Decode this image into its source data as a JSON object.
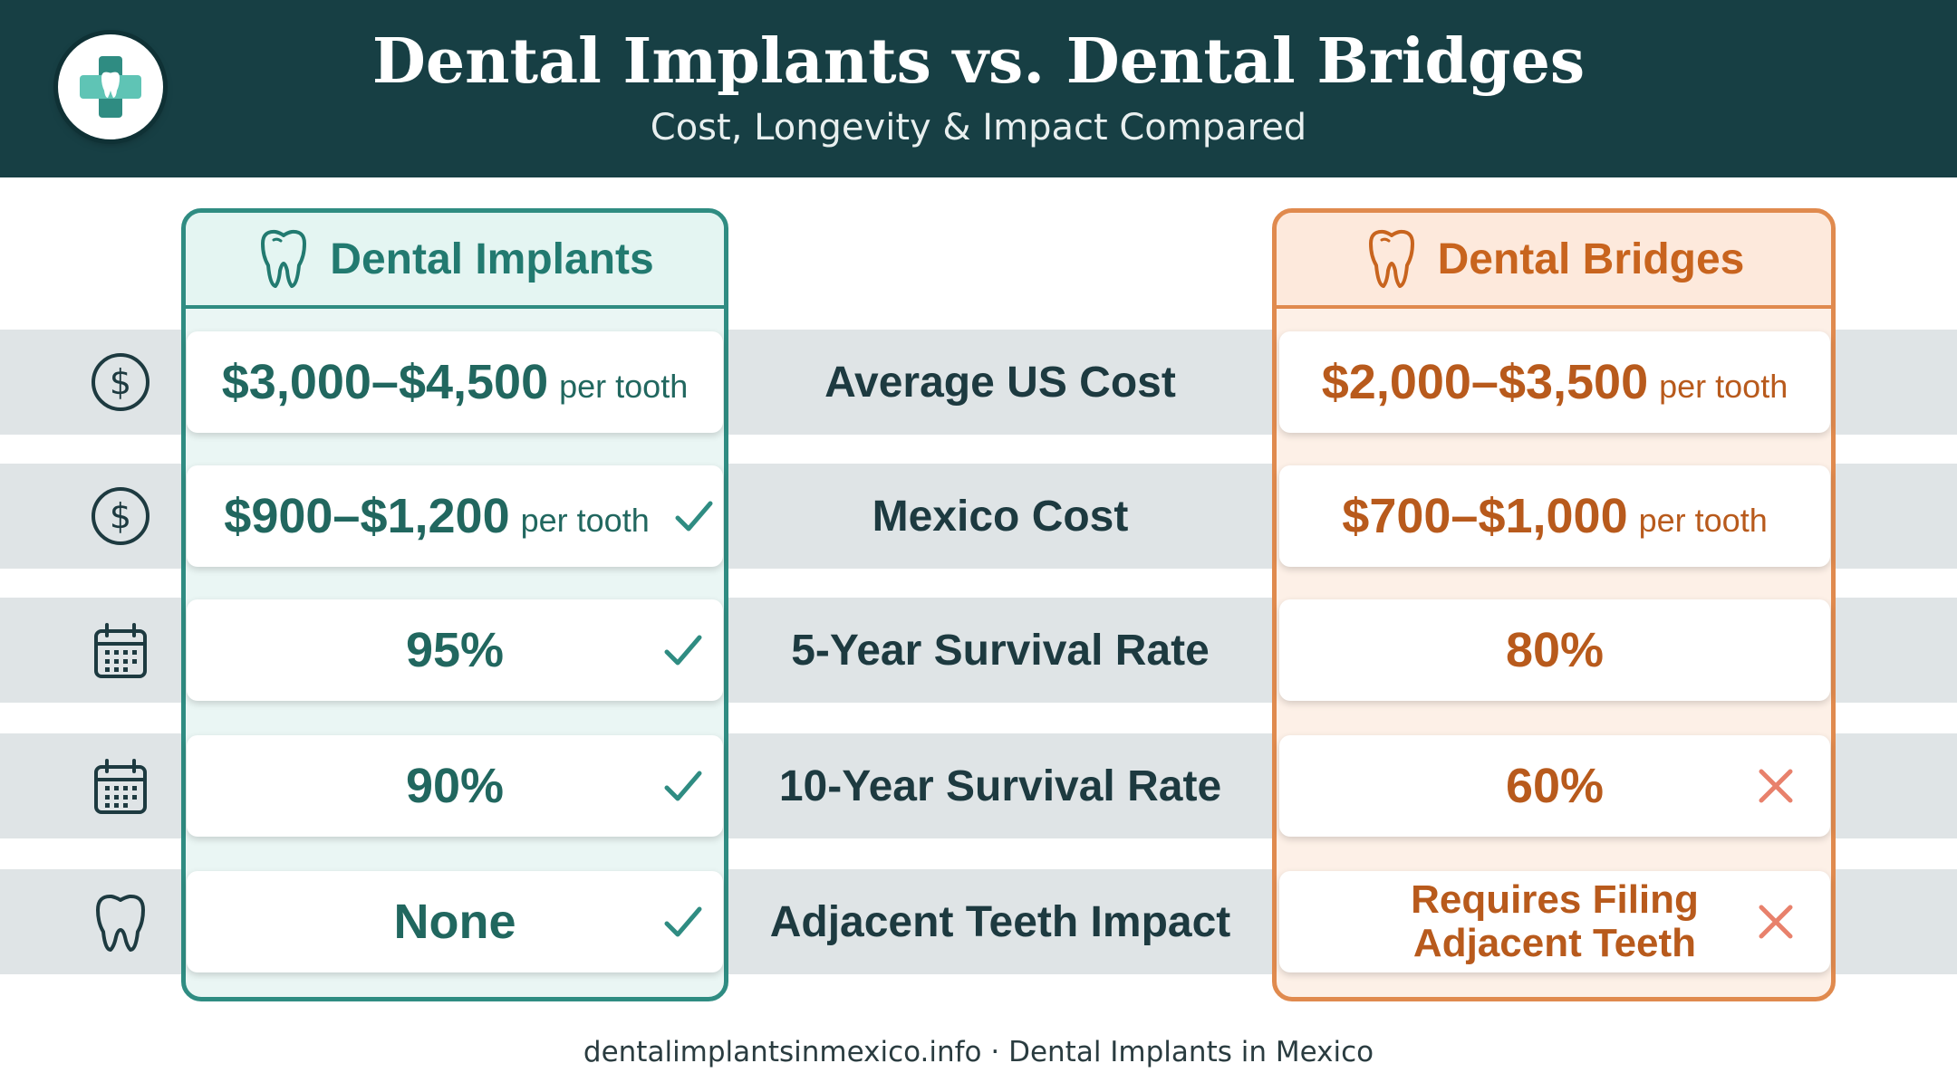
{
  "header": {
    "title": "Dental Implants vs. Dental Bridges",
    "subtitle": "Cost, Longevity & Impact Compared",
    "logo_icon": "tooth-cross-logo-icon"
  },
  "columns": {
    "implants": {
      "title": "Dental Implants",
      "icon": "tooth-icon",
      "accent": "#2f8c82"
    },
    "bridges": {
      "title": "Dental Bridges",
      "icon": "tooth-icon",
      "accent": "#e08a4e"
    }
  },
  "rows": [
    {
      "metric": "Average US Cost",
      "icon": "dollar-icon",
      "implants": {
        "value": "$3,000–$4,500",
        "unit": "per tooth",
        "mark": ""
      },
      "bridges": {
        "value": "$2,000–$3,500",
        "unit": "per tooth",
        "mark": ""
      }
    },
    {
      "metric": "Mexico Cost",
      "icon": "dollar-icon",
      "implants": {
        "value": "$900–$1,200",
        "unit": "per tooth",
        "mark": "check"
      },
      "bridges": {
        "value": "$700–$1,000",
        "unit": "per tooth",
        "mark": ""
      }
    },
    {
      "metric": "5-Year Survival Rate",
      "icon": "calendar-icon",
      "implants": {
        "value": "95%",
        "unit": "",
        "mark": "check"
      },
      "bridges": {
        "value": "80%",
        "unit": "",
        "mark": ""
      }
    },
    {
      "metric": "10-Year Survival Rate",
      "icon": "calendar-icon",
      "implants": {
        "value": "90%",
        "unit": "",
        "mark": "check"
      },
      "bridges": {
        "value": "60%",
        "unit": "",
        "mark": "cross"
      }
    },
    {
      "metric": "Adjacent Teeth Impact",
      "icon": "tooth-icon",
      "implants": {
        "value": "None",
        "unit": "",
        "mark": "check"
      },
      "bridges": {
        "line1": "Requires Filing",
        "line2": "Adjacent Teeth",
        "mark": "cross"
      }
    }
  ],
  "footer": "dentalimplantsinmexico.info · Dental Implants in Mexico",
  "colors": {
    "header_bg": "#173f44",
    "check": "#2f8c82",
    "cross": "#e8816c"
  }
}
